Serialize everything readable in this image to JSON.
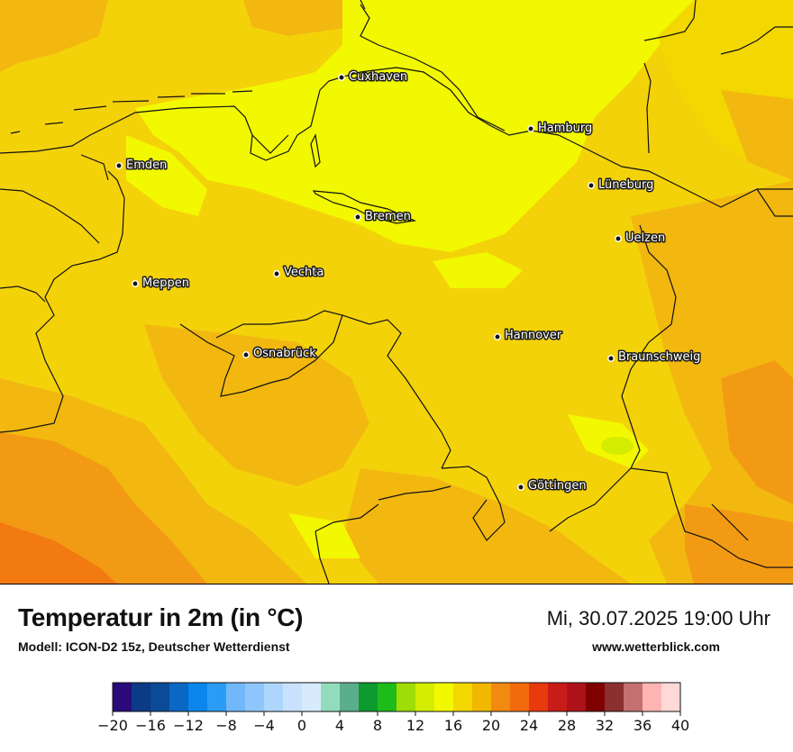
{
  "map": {
    "title": "Temperatur in 2m (in °C)",
    "model": "Modell: ICON-D2 15z, Deutscher Wetterdienst",
    "datetime": "Mi, 30.07.2025 19:00 Uhr",
    "website": "www.wetterblick.com",
    "cities": [
      {
        "name": "Cuxhaven"
      },
      {
        "name": "Hamburg"
      },
      {
        "name": "Emden"
      },
      {
        "name": "Lüneburg"
      },
      {
        "name": "Bremen"
      },
      {
        "name": "Uelzen"
      },
      {
        "name": "Vechta"
      },
      {
        "name": "Meppen"
      },
      {
        "name": "Hannover"
      },
      {
        "name": "Osnabrück"
      },
      {
        "name": "Braunschweig"
      },
      {
        "name": "Göttingen"
      }
    ]
  },
  "legend": {
    "min": -20,
    "max": 40,
    "step": 2,
    "ticks": [
      "−20",
      "−16",
      "−12",
      "−8",
      "−4",
      "0",
      "4",
      "8",
      "12",
      "16",
      "20",
      "24",
      "28",
      "32",
      "36",
      "40"
    ],
    "colors": [
      "#2a0a7a",
      "#0c3a86",
      "#0a4a96",
      "#0a67c4",
      "#0a86ec",
      "#2a9cf6",
      "#70b8fa",
      "#8ec6fb",
      "#aed6fc",
      "#c8e2fd",
      "#d8ebfd",
      "#92dcbc",
      "#5aae8a",
      "#0e9a2e",
      "#1ebc1a",
      "#a0dc06",
      "#d4ec00",
      "#f2f800",
      "#f2d800",
      "#f2b800",
      "#f28a12",
      "#f26a0c",
      "#e83a0c",
      "#c81c18",
      "#ae1218",
      "#800000",
      "#8a3030",
      "#c47070",
      "#ffb4b4",
      "#ffd8d8"
    ]
  }
}
